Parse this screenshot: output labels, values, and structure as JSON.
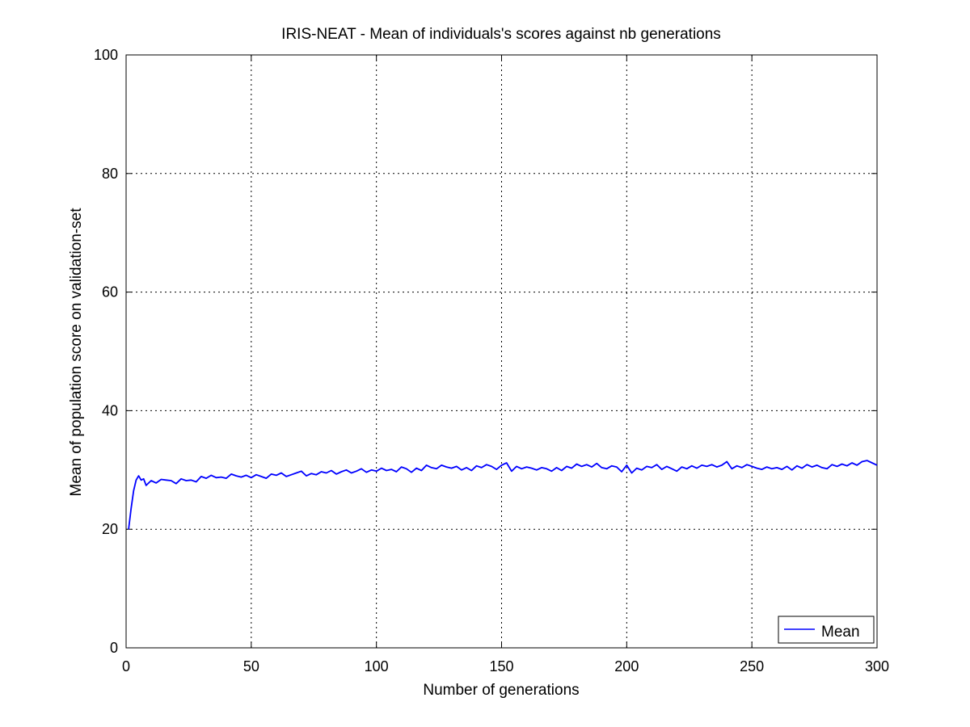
{
  "chart_data": {
    "type": "line",
    "title": "IRIS-NEAT - Mean of individuals's scores against nb generations",
    "xlabel": "Number of generations",
    "ylabel": "Mean of population score on validation-set",
    "xlim": [
      0,
      300
    ],
    "ylim": [
      0,
      100
    ],
    "xticks": [
      "0",
      "50",
      "100",
      "150",
      "200",
      "250",
      "300"
    ],
    "yticks": [
      "0",
      "20",
      "40",
      "60",
      "80",
      "100"
    ],
    "grid": true,
    "legend_position": "bottom-right",
    "series": [
      {
        "name": "Mean",
        "color": "#0000ff",
        "x": [
          1,
          2,
          3,
          4,
          5,
          6,
          7,
          8,
          9,
          10,
          12,
          14,
          16,
          18,
          20,
          22,
          24,
          26,
          28,
          30,
          32,
          34,
          36,
          38,
          40,
          42,
          44,
          46,
          48,
          50,
          52,
          54,
          56,
          58,
          60,
          62,
          64,
          66,
          68,
          70,
          72,
          74,
          76,
          78,
          80,
          82,
          84,
          86,
          88,
          90,
          92,
          94,
          96,
          98,
          100,
          102,
          104,
          106,
          108,
          110,
          112,
          114,
          116,
          118,
          120,
          122,
          124,
          126,
          128,
          130,
          132,
          134,
          136,
          138,
          140,
          142,
          144,
          146,
          148,
          150,
          152,
          154,
          156,
          158,
          160,
          162,
          164,
          166,
          168,
          170,
          172,
          174,
          176,
          178,
          180,
          182,
          184,
          186,
          188,
          190,
          192,
          194,
          196,
          198,
          200,
          202,
          204,
          206,
          208,
          210,
          212,
          214,
          216,
          218,
          220,
          222,
          224,
          226,
          228,
          230,
          232,
          234,
          236,
          238,
          240,
          242,
          244,
          246,
          248,
          250,
          252,
          254,
          256,
          258,
          260,
          262,
          264,
          266,
          268,
          270,
          272,
          274,
          276,
          278,
          280,
          282,
          284,
          286,
          288,
          290,
          292,
          294,
          296,
          298,
          300
        ],
        "y": [
          20.0,
          23.5,
          26.5,
          28.3,
          29.0,
          28.3,
          28.5,
          27.4,
          27.8,
          28.2,
          27.8,
          28.4,
          28.3,
          28.2,
          27.7,
          28.5,
          28.2,
          28.3,
          28.0,
          28.9,
          28.6,
          29.1,
          28.7,
          28.8,
          28.6,
          29.3,
          29.0,
          28.8,
          29.1,
          28.7,
          29.2,
          28.9,
          28.6,
          29.3,
          29.1,
          29.5,
          28.9,
          29.2,
          29.5,
          29.8,
          29.0,
          29.4,
          29.2,
          29.7,
          29.5,
          29.9,
          29.3,
          29.7,
          30.0,
          29.5,
          29.8,
          30.2,
          29.6,
          30.0,
          29.8,
          30.3,
          29.9,
          30.1,
          29.7,
          30.5,
          30.2,
          29.6,
          30.3,
          29.9,
          30.8,
          30.4,
          30.2,
          30.8,
          30.5,
          30.3,
          30.6,
          30.0,
          30.4,
          29.9,
          30.7,
          30.4,
          30.9,
          30.6,
          30.1,
          30.8,
          31.2,
          29.8,
          30.6,
          30.2,
          30.5,
          30.3,
          30.0,
          30.4,
          30.2,
          29.8,
          30.4,
          29.9,
          30.6,
          30.3,
          31.0,
          30.6,
          30.9,
          30.5,
          31.1,
          30.4,
          30.2,
          30.7,
          30.5,
          29.7,
          30.8,
          29.5,
          30.3,
          30.0,
          30.6,
          30.4,
          30.9,
          30.1,
          30.6,
          30.2,
          29.8,
          30.5,
          30.2,
          30.7,
          30.3,
          30.8,
          30.6,
          30.9,
          30.5,
          30.8,
          31.4,
          30.2,
          30.7,
          30.4,
          30.9,
          30.6,
          30.3,
          30.1,
          30.5,
          30.2,
          30.4,
          30.1,
          30.6,
          30.0,
          30.7,
          30.3,
          30.9,
          30.5,
          30.8,
          30.4,
          30.2,
          30.9,
          30.6,
          31.0,
          30.7,
          31.2,
          30.8,
          31.4,
          31.6,
          31.2,
          30.8
        ]
      }
    ]
  }
}
